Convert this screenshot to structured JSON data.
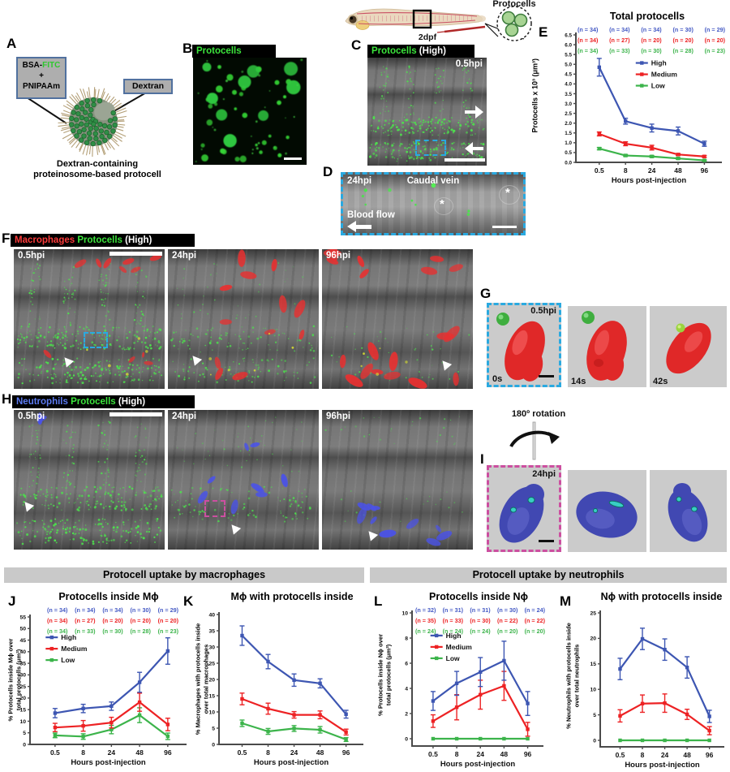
{
  "figure": {
    "panel_a": {
      "label": "A",
      "box1_line1_pre": "BSA-",
      "box1_line1_green": "FITC",
      "box1_line2": "+",
      "box1_line3": "PNIPAAm",
      "box2": "Dextran",
      "caption_line1": "Dextran-containing",
      "caption_line2": "proteinosome-based protocell",
      "green_accent": "#2ec82e"
    },
    "panel_b": {
      "label": "B",
      "header": "Protocells"
    },
    "fish": {
      "stage": "2dpf",
      "inset_title": "Protocells"
    },
    "panel_c": {
      "label": "C",
      "header_green": "Protocells",
      "header_white": " (High)",
      "time": "0.5hpi"
    },
    "panel_d": {
      "label": "D",
      "time": "24hpi",
      "vein": "Caudal vein",
      "flow": "Blood flow",
      "asterisk": "*"
    },
    "panel_f": {
      "label": "F",
      "header_red": "Macrophages",
      "header_green": " Protocells",
      "header_white": " (High)",
      "times": [
        "0.5hpi",
        "24hpi",
        "96hpi"
      ]
    },
    "panel_g": {
      "label": "G",
      "time": "0.5hpi",
      "frames": [
        "0s",
        "14s",
        "42s"
      ]
    },
    "panel_h": {
      "label": "H",
      "header_blue": "Neutrophils",
      "header_green": " Protocells",
      "header_white": " (High)",
      "times": [
        "0.5hpi",
        "24hpi",
        "96hpi"
      ]
    },
    "panel_i": {
      "label": "I",
      "rotation": "180º rotation",
      "time": "24hpi"
    },
    "section_left": "Protocell uptake by macrophages",
    "section_right": "Protocell uptake by neutrophils",
    "colors": {
      "high_blue": "#3d56b2",
      "medium_red": "#ed2224",
      "low_green": "#3cb44b",
      "protocell_green": "#3ce43c",
      "macrophage_red": "#fb3b3b",
      "neutrophil_blue": "#5d7bf2",
      "dashed_cyan": "#2aa9e0",
      "dashed_magenta": "#cc4fa0"
    }
  },
  "chart_data": [
    {
      "panel_label": "E",
      "type": "line",
      "title": "Total protocells",
      "xlabel": "Hours post-injection",
      "ylabel": "Protocells x 10³ (μm³)",
      "categories": [
        "0.5",
        "8",
        "24",
        "48",
        "96"
      ],
      "ylim": [
        0,
        6.5
      ],
      "ystep": 0.5,
      "ydecimals": 1,
      "legend": [
        0.41,
        0.22
      ],
      "n_rows": [
        {
          "color": "#4459c4",
          "values": [
            "(n = 34)",
            "(n = 34)",
            "(n = 34)",
            "(n = 30)",
            "(n = 29)"
          ]
        },
        {
          "color": "#ed2224",
          "values": [
            "(n = 34)",
            "(n = 27)",
            "(n = 20)",
            "(n = 20)",
            "(n = 20)"
          ]
        },
        {
          "color": "#3cb44b",
          "values": [
            "(n = 34)",
            "(n = 33)",
            "(n = 30)",
            "(n = 28)",
            "(n = 23)"
          ]
        }
      ],
      "series": [
        {
          "name": "High",
          "color": "#3d56b2",
          "values": [
            4.85,
            2.1,
            1.75,
            1.6,
            0.95
          ],
          "errors": [
            0.45,
            0.15,
            0.2,
            0.2,
            0.13
          ]
        },
        {
          "name": "Medium",
          "color": "#ed2224",
          "values": [
            1.45,
            0.95,
            0.75,
            0.4,
            0.3
          ],
          "errors": [
            0.1,
            0.1,
            0.12,
            0.05,
            0.05
          ]
        },
        {
          "name": "Low",
          "color": "#3cb44b",
          "values": [
            0.7,
            0.35,
            0.3,
            0.2,
            0.1
          ],
          "errors": [
            0.06,
            0.05,
            0.05,
            0.04,
            0.03
          ]
        }
      ]
    },
    {
      "panel_label": "J",
      "type": "line",
      "title": "Protocells inside Mϕ",
      "xlabel": "Hours post-injection",
      "ylabel": "% Protocells inside Mϕ over\ntotal protocells (μm³)",
      "categories": [
        "0.5",
        "8",
        "24",
        "48",
        "96"
      ],
      "ylim": [
        0,
        55
      ],
      "ystep": 5,
      "ydecimals": 0,
      "legend": [
        0.1,
        0.16
      ],
      "n_rows": [
        {
          "color": "#4459c4",
          "values": [
            "(n = 34)",
            "(n = 34)",
            "(n = 34)",
            "(n = 30)",
            "(n = 29)"
          ]
        },
        {
          "color": "#ed2224",
          "values": [
            "(n = 34)",
            "(n = 27)",
            "(n = 20)",
            "(n = 20)",
            "(n = 20)"
          ]
        },
        {
          "color": "#3cb44b",
          "values": [
            "(n = 34)",
            "(n = 33)",
            "(n = 30)",
            "(n = 28)",
            "(n = 23)"
          ]
        }
      ],
      "series": [
        {
          "name": "High",
          "color": "#3d56b2",
          "values": [
            13.5,
            15.5,
            16.5,
            26.8,
            40.3
          ],
          "errors": [
            2,
            1.8,
            1.8,
            4.3,
            5.7
          ]
        },
        {
          "name": "Medium",
          "color": "#ed2224",
          "values": [
            7.3,
            8,
            9.4,
            18.2,
            8.6
          ],
          "errors": [
            1.8,
            2.3,
            2.3,
            3.9,
            2.7
          ]
        },
        {
          "name": "Low",
          "color": "#3cb44b",
          "values": [
            3.9,
            3.4,
            6.4,
            12.6,
            3.5
          ],
          "errors": [
            1,
            1.2,
            1.8,
            3.2,
            1.4
          ]
        }
      ]
    },
    {
      "panel_label": "K",
      "type": "line",
      "title": "Mϕ with protocells inside",
      "xlabel": "Hours post-injection",
      "ylabel": "% Macrophages with protocells inside\nover total macrophages",
      "categories": [
        "0.5",
        "8",
        "24",
        "48",
        "96"
      ],
      "ylim": [
        0,
        40
      ],
      "ystep": 5,
      "ydecimals": 0,
      "legend": null,
      "n_rows": null,
      "series": [
        {
          "name": "High",
          "color": "#3d56b2",
          "values": [
            33.5,
            25.5,
            19.8,
            18.8,
            9.3
          ],
          "errors": [
            3,
            2.2,
            1.9,
            1.4,
            1.2
          ]
        },
        {
          "name": "Medium",
          "color": "#ed2224",
          "values": [
            14,
            11,
            9.1,
            9.1,
            3.8
          ],
          "errors": [
            1.8,
            1.7,
            1,
            1.2,
            0.9
          ]
        },
        {
          "name": "Low",
          "color": "#3cb44b",
          "values": [
            6.5,
            4,
            4.9,
            4.5,
            1.5
          ],
          "errors": [
            1,
            0.9,
            0.9,
            1,
            0.6
          ]
        }
      ]
    },
    {
      "panel_label": "L",
      "type": "line",
      "title": "Protocells inside Nϕ",
      "xlabel": "Hours post-injection",
      "ylabel": "% Protocells inside Nϕ over\ntotal protocells (μm³)",
      "categories": [
        "0.5",
        "8",
        "24",
        "48",
        "96"
      ],
      "ylim": [
        0,
        10
      ],
      "ystep": 2,
      "ydecimals": 0,
      "legend": [
        0.14,
        0.18
      ],
      "n_rows": [
        {
          "color": "#4459c4",
          "values": [
            "(n = 32)",
            "(n = 31)",
            "(n = 31)",
            "(n = 30)",
            "(n = 24)"
          ]
        },
        {
          "color": "#ed2224",
          "values": [
            "(n = 35)",
            "(n = 33)",
            "(n = 30)",
            "(n = 22)",
            "(n = 22)"
          ]
        },
        {
          "color": "#3cb44b",
          "values": [
            "(n = 24)",
            "(n = 24)",
            "(n = 24)",
            "(n = 20)",
            "(n = 20)"
          ]
        }
      ],
      "series": [
        {
          "name": "High",
          "color": "#3d56b2",
          "values": [
            3,
            4.4,
            5.3,
            6.2,
            2.8
          ],
          "errors": [
            0.75,
            0.95,
            1.15,
            1.55,
            0.95
          ]
        },
        {
          "name": "Medium",
          "color": "#ed2224",
          "values": [
            1.4,
            2.5,
            3.5,
            4.2,
            0.75
          ],
          "errors": [
            0.5,
            1,
            1.15,
            1.15,
            0.55
          ]
        },
        {
          "name": "Low",
          "color": "#3cb44b",
          "values": [
            0,
            0,
            0,
            0,
            0
          ],
          "errors": [
            0,
            0,
            0,
            0,
            0
          ]
        }
      ]
    },
    {
      "panel_label": "M",
      "type": "line",
      "title": "Nϕ with protocells inside",
      "xlabel": "Hours post-injection",
      "ylabel": "% Neutrophils with protocells inside\nover total neutrophils",
      "categories": [
        "0.5",
        "8",
        "24",
        "48",
        "96"
      ],
      "ylim": [
        0,
        25
      ],
      "ystep": 5,
      "ydecimals": 0,
      "legend": null,
      "n_rows": null,
      "series": [
        {
          "name": "High",
          "color": "#3d56b2",
          "values": [
            14,
            19.9,
            17.8,
            14.3,
            4.7
          ],
          "errors": [
            2.1,
            2.1,
            2.1,
            2.1,
            1.2
          ]
        },
        {
          "name": "Medium",
          "color": "#ed2224",
          "values": [
            4.8,
            7.2,
            7.3,
            5.1,
            1.9
          ],
          "errors": [
            1.2,
            1.7,
            1.8,
            1,
            0.8
          ]
        },
        {
          "name": "Low",
          "color": "#3cb44b",
          "values": [
            0,
            0,
            0,
            0,
            0
          ],
          "errors": [
            0,
            0,
            0,
            0,
            0
          ]
        }
      ]
    }
  ]
}
